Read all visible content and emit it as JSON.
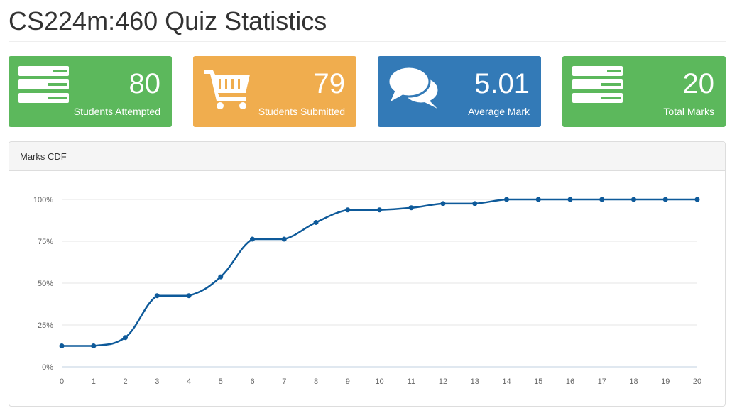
{
  "page": {
    "title": "CS224m:460 Quiz Statistics"
  },
  "stats": [
    {
      "value": "80",
      "label": "Students Attempted",
      "icon": "list-icon",
      "color": "#5cb85c"
    },
    {
      "value": "79",
      "label": "Students Submitted",
      "icon": "shopping-cart-icon",
      "color": "#f0ad4e"
    },
    {
      "value": "5.01",
      "label": "Average Mark",
      "icon": "comments-icon",
      "color": "#337ab7"
    },
    {
      "value": "20",
      "label": "Total Marks",
      "icon": "list-icon",
      "color": "#5cb85c"
    }
  ],
  "panel": {
    "heading": "Marks CDF"
  },
  "chart_data": {
    "type": "line",
    "title": "",
    "xlabel": "",
    "ylabel": "",
    "x": [
      0,
      1,
      2,
      3,
      4,
      5,
      6,
      7,
      8,
      9,
      10,
      11,
      12,
      13,
      14,
      15,
      16,
      17,
      18,
      19,
      20
    ],
    "y": [
      12.5,
      12.5,
      17.5,
      42.5,
      42.5,
      53.75,
      76.25,
      76.25,
      86.25,
      93.75,
      93.75,
      95,
      97.5,
      97.5,
      100,
      100,
      100,
      100,
      100,
      100,
      100
    ],
    "ylim": [
      0,
      100
    ],
    "y_ticks": [
      "0%",
      "25%",
      "50%",
      "75%",
      "100%"
    ],
    "x_ticks": [
      "0",
      "1",
      "2",
      "3",
      "4",
      "5",
      "6",
      "7",
      "8",
      "9",
      "10",
      "11",
      "12",
      "13",
      "14",
      "15",
      "16",
      "17",
      "18",
      "19",
      "20"
    ],
    "grid": true,
    "line_color": "#0e5a9a"
  }
}
